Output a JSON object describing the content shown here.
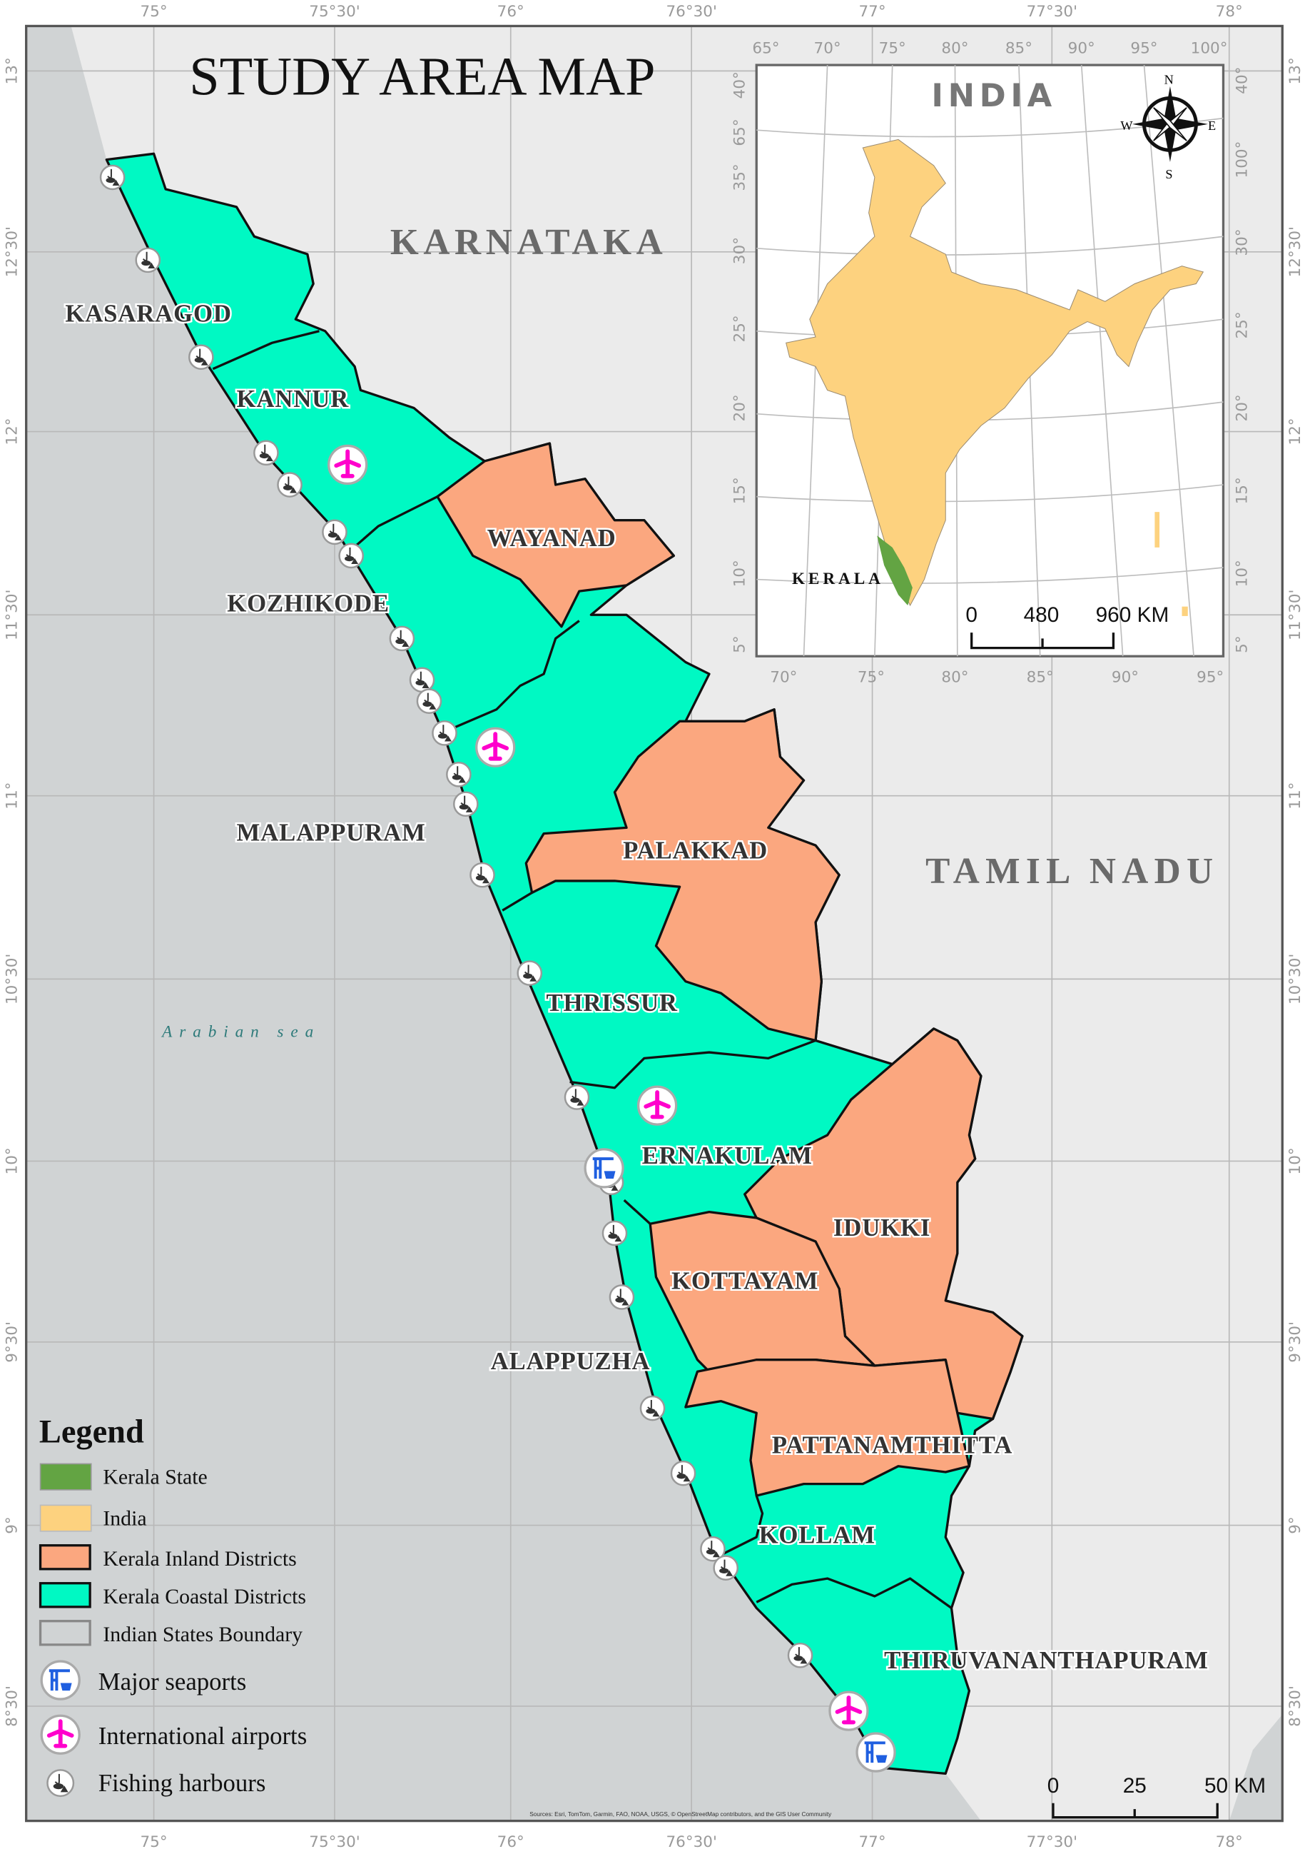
{
  "title": "STUDY AREA MAP",
  "regions": {
    "karnataka": "KARNATAKA",
    "tamil_nadu": "TAMIL NADU",
    "sea": "Arabian sea"
  },
  "districts": {
    "kasaragod": "KASARAGOD",
    "kannur": "KANNUR",
    "wayanad": "WAYANAD",
    "kozhikode": "KOZHIKODE",
    "malappuram": "MALAPPURAM",
    "palakkad": "PALAKKAD",
    "thrissur": "THRISSUR",
    "ernakulam": "ERNAKULAM",
    "idukki": "IDUKKI",
    "kottayam": "KOTTAYAM",
    "alappuzha": "ALAPPUZHA",
    "pattanamthitta": "PATTANAMTHITTA",
    "kollam": "KOLLAM",
    "thiruvananthapuram": "THIRUVANANTHAPURAM"
  },
  "colors": {
    "coastal": "#00f9c3",
    "inland": "#fba77f",
    "india": "#fdd27f",
    "kerala": "#63a443",
    "sea": "#d0d3d4",
    "land": "#ebebeb",
    "airport": "#ff00cc",
    "seaport": "#1f5fe0"
  },
  "graticule": {
    "lon_labels": [
      "75°",
      "75°30'",
      "76°",
      "76°30'",
      "77°",
      "77°30'",
      "78°"
    ],
    "lat_labels": [
      "13°",
      "12°30'",
      "12°",
      "11°30'",
      "11°",
      "10°30'",
      "10°",
      "9°30'",
      "9°",
      "8°30'"
    ]
  },
  "inset": {
    "title": "INDIA",
    "kerala_label": "KERALA",
    "compass": {
      "n": "N",
      "s": "S",
      "e": "E",
      "w": "W"
    },
    "lon_top": [
      "65°",
      "70°",
      "75°",
      "80°",
      "85°",
      "90°",
      "95°",
      "100°"
    ],
    "lon_bottom": [
      "70°",
      "75°",
      "80°",
      "85°",
      "90°",
      "95°"
    ],
    "lat_left": [
      "40°",
      "35°",
      "30°",
      "25°",
      "20°",
      "15°",
      "10°",
      "5°"
    ],
    "lat_left_top": "65°",
    "lat_right": [
      "40°",
      "100°",
      "30°",
      "25°",
      "20°",
      "15°",
      "10°",
      "5°"
    ],
    "scale": {
      "a": "0",
      "b": "480",
      "c": "960 KM"
    }
  },
  "legend": {
    "title": "Legend",
    "items": [
      "Kerala State",
      "India",
      "Kerala Inland Districts",
      "Kerala Coastal Districts",
      "Indian States Boundary",
      "Major seaports",
      "International airports",
      "Fishing harbours"
    ]
  },
  "scale_bar": {
    "a": "0",
    "b": "25",
    "c": "50 KM"
  },
  "sources": "Sources: Esri, TomTom, Garmin, FAO, NOAA, USGS, © OpenStreetMap contributors, and the GIS User Community"
}
